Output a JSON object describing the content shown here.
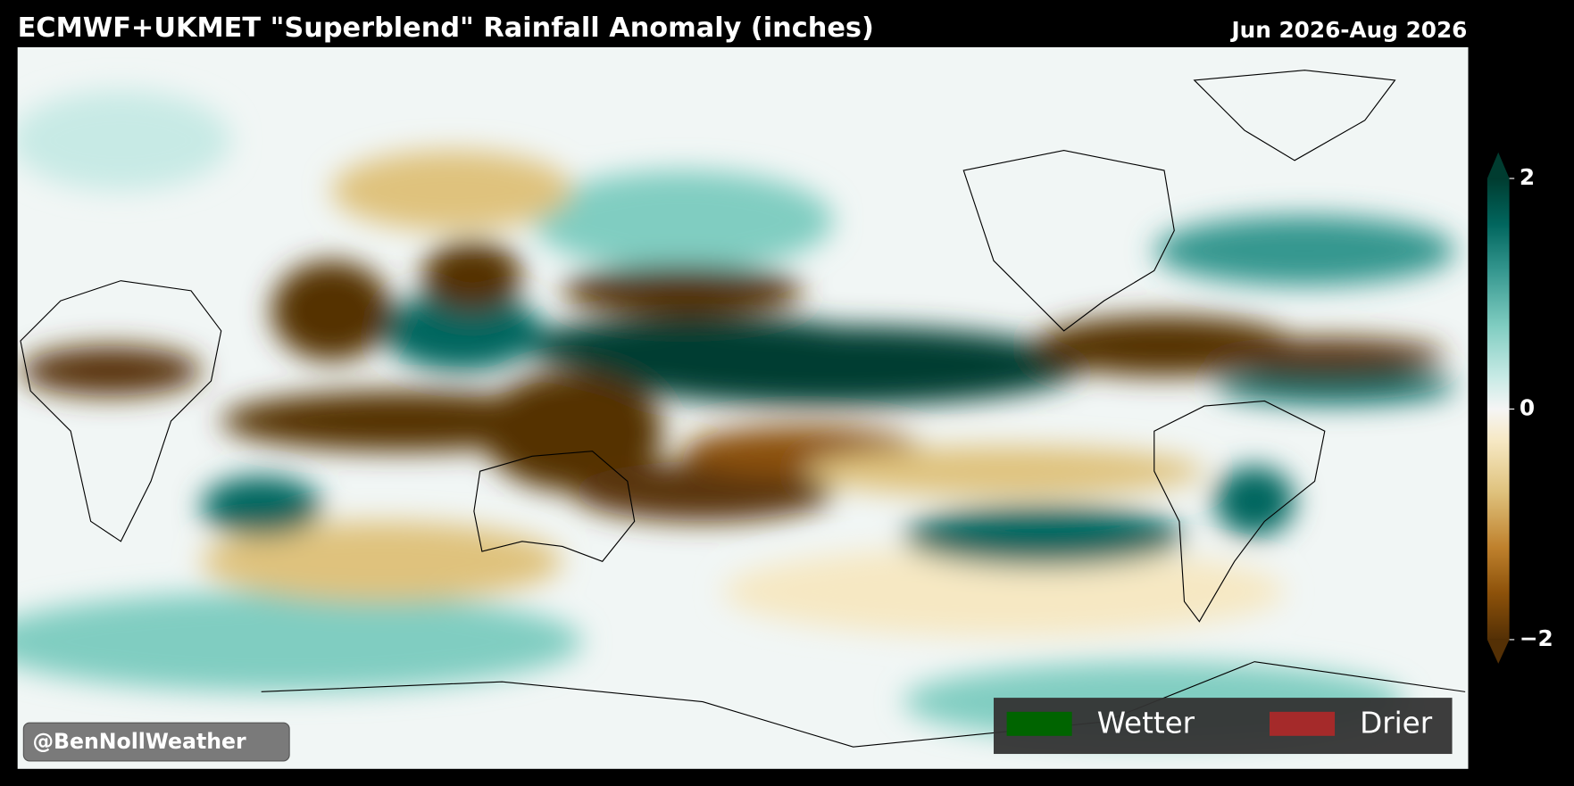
{
  "map": {
    "title": "ECMWF+UKMET \"Superblend\" Rainfall Anomaly (inches)",
    "period": "Jun 2026-Aug 2026",
    "colorbar": {
      "lim": [
        -2,
        2
      ],
      "ticks": [
        2,
        0,
        {
          "value": -2,
          "label": "−2"
        }
      ]
    },
    "legend": [
      {
        "label": "Wetter",
        "color": "#006400"
      },
      {
        "label": "Drier",
        "color": "#a52a2a"
      }
    ],
    "watermark": "@BenNollWeather"
  }
}
